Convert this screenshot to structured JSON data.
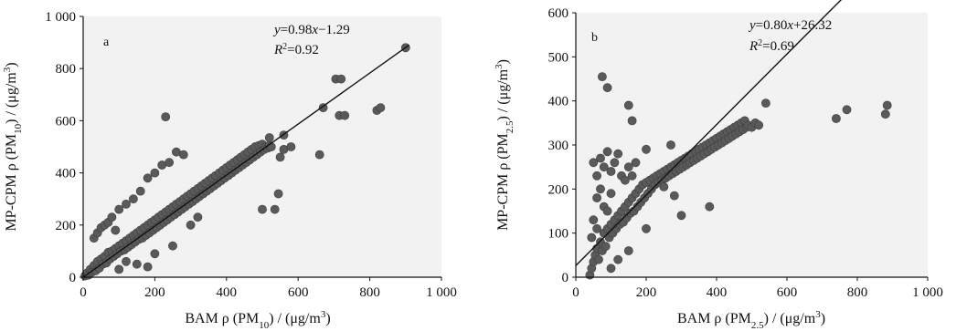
{
  "chart_data": [
    {
      "type": "scatter",
      "panel_label": "a",
      "xlabel_parts": {
        "pre": "BAM ρ (PM",
        "sub": "10",
        "post": ") / (μg/m",
        "sup": "3",
        "end": ")"
      },
      "ylabel_parts": {
        "pre": "MP-CPM ρ (PM",
        "sub": "10",
        "post": ") / (μg/m",
        "sup": "3",
        "end": ")"
      },
      "xlim": [
        0,
        1000
      ],
      "ylim": [
        0,
        1000
      ],
      "xticks": [
        0,
        200,
        400,
        600,
        800,
        1000
      ],
      "xtick_labels": [
        "0",
        "200",
        "400",
        "600",
        "800",
        "1 000"
      ],
      "yticks": [
        0,
        200,
        400,
        600,
        800,
        1000
      ],
      "ytick_labels": [
        "0",
        "200",
        "400",
        "600",
        "800",
        "1 000"
      ],
      "fit": {
        "slope": 0.98,
        "intercept": -1.29,
        "x_range": [
          0,
          910
        ]
      },
      "equation_parts": {
        "y": "y",
        "eq": "=0.98",
        "x": "x",
        "rest": "−1.29"
      },
      "r2_parts": {
        "r": "R",
        "sup": "2",
        "val": "=0.92"
      },
      "grid": false,
      "points": [
        [
          5,
          5
        ],
        [
          10,
          15
        ],
        [
          15,
          8
        ],
        [
          20,
          30
        ],
        [
          25,
          20
        ],
        [
          30,
          45
        ],
        [
          35,
          25
        ],
        [
          40,
          60
        ],
        [
          45,
          35
        ],
        [
          50,
          70
        ],
        [
          55,
          50
        ],
        [
          60,
          80
        ],
        [
          65,
          55
        ],
        [
          70,
          95
        ],
        [
          75,
          70
        ],
        [
          80,
          100
        ],
        [
          85,
          80
        ],
        [
          90,
          110
        ],
        [
          95,
          90
        ],
        [
          100,
          120
        ],
        [
          105,
          100
        ],
        [
          110,
          130
        ],
        [
          115,
          105
        ],
        [
          120,
          140
        ],
        [
          125,
          115
        ],
        [
          130,
          150
        ],
        [
          135,
          125
        ],
        [
          140,
          160
        ],
        [
          145,
          135
        ],
        [
          150,
          170
        ],
        [
          155,
          145
        ],
        [
          160,
          180
        ],
        [
          165,
          150
        ],
        [
          170,
          190
        ],
        [
          175,
          160
        ],
        [
          180,
          200
        ],
        [
          185,
          170
        ],
        [
          190,
          210
        ],
        [
          195,
          180
        ],
        [
          200,
          220
        ],
        [
          205,
          190
        ],
        [
          210,
          230
        ],
        [
          215,
          200
        ],
        [
          220,
          240
        ],
        [
          225,
          210
        ],
        [
          230,
          250
        ],
        [
          235,
          220
        ],
        [
          240,
          260
        ],
        [
          245,
          230
        ],
        [
          250,
          270
        ],
        [
          255,
          240
        ],
        [
          260,
          280
        ],
        [
          265,
          250
        ],
        [
          270,
          290
        ],
        [
          275,
          260
        ],
        [
          280,
          300
        ],
        [
          285,
          270
        ],
        [
          290,
          310
        ],
        [
          295,
          280
        ],
        [
          300,
          320
        ],
        [
          305,
          290
        ],
        [
          310,
          330
        ],
        [
          315,
          300
        ],
        [
          320,
          340
        ],
        [
          325,
          310
        ],
        [
          330,
          350
        ],
        [
          335,
          320
        ],
        [
          340,
          360
        ],
        [
          345,
          330
        ],
        [
          350,
          370
        ],
        [
          355,
          340
        ],
        [
          360,
          380
        ],
        [
          365,
          350
        ],
        [
          370,
          390
        ],
        [
          375,
          360
        ],
        [
          380,
          400
        ],
        [
          385,
          370
        ],
        [
          390,
          410
        ],
        [
          395,
          380
        ],
        [
          400,
          420
        ],
        [
          405,
          390
        ],
        [
          410,
          430
        ],
        [
          415,
          400
        ],
        [
          420,
          440
        ],
        [
          425,
          410
        ],
        [
          430,
          450
        ],
        [
          435,
          420
        ],
        [
          440,
          460
        ],
        [
          445,
          430
        ],
        [
          450,
          470
        ],
        [
          455,
          440
        ],
        [
          460,
          480
        ],
        [
          465,
          450
        ],
        [
          470,
          490
        ],
        [
          475,
          460
        ],
        [
          480,
          500
        ],
        [
          485,
          470
        ],
        [
          490,
          505
        ],
        [
          495,
          480
        ],
        [
          500,
          510
        ],
        [
          505,
          490
        ],
        [
          510,
          500
        ],
        [
          515,
          495
        ],
        [
          520,
          505
        ],
        [
          525,
          500
        ],
        [
          30,
          150
        ],
        [
          40,
          170
        ],
        [
          50,
          190
        ],
        [
          60,
          200
        ],
        [
          70,
          210
        ],
        [
          80,
          230
        ],
        [
          90,
          180
        ],
        [
          100,
          260
        ],
        [
          120,
          280
        ],
        [
          140,
          300
        ],
        [
          160,
          330
        ],
        [
          180,
          380
        ],
        [
          200,
          400
        ],
        [
          220,
          430
        ],
        [
          240,
          440
        ],
        [
          260,
          480
        ],
        [
          280,
          470
        ],
        [
          250,
          120
        ],
        [
          200,
          90
        ],
        [
          150,
          50
        ],
        [
          180,
          40
        ],
        [
          300,
          200
        ],
        [
          320,
          230
        ],
        [
          120,
          60
        ],
        [
          100,
          30
        ],
        [
          230,
          615
        ],
        [
          520,
          535
        ],
        [
          550,
          460
        ],
        [
          545,
          320
        ],
        [
          535,
          260
        ],
        [
          500,
          260
        ],
        [
          560,
          490
        ],
        [
          560,
          545
        ],
        [
          580,
          500
        ],
        [
          660,
          470
        ],
        [
          670,
          650
        ],
        [
          705,
          760
        ],
        [
          720,
          760
        ],
        [
          715,
          620
        ],
        [
          730,
          620
        ],
        [
          820,
          640
        ],
        [
          830,
          650
        ],
        [
          900,
          880
        ]
      ]
    },
    {
      "type": "scatter",
      "panel_label": "b",
      "xlabel_parts": {
        "pre": "BAM ρ (PM",
        "sub": "2.5",
        "post": ") / (μg/m",
        "sup": "3",
        "end": ")"
      },
      "ylabel_parts": {
        "pre": "MP-CPM ρ (PM",
        "sub": "2.5",
        "post": ") / (μg/m",
        "sup": "3",
        "end": ")"
      },
      "xlim": [
        0,
        1000
      ],
      "ylim": [
        0,
        600
      ],
      "xticks": [
        0,
        200,
        400,
        600,
        800,
        1000
      ],
      "xtick_labels": [
        "0",
        "200",
        "400",
        "600",
        "800",
        "1 000"
      ],
      "yticks": [
        0,
        100,
        200,
        300,
        400,
        500,
        600
      ],
      "ytick_labels": [
        "0",
        "100",
        "200",
        "300",
        "400",
        "500",
        "600"
      ],
      "fit": {
        "slope": 0.8,
        "intercept": 26.32,
        "x_range": [
          0,
          890
        ]
      },
      "equation_parts": {
        "y": "y",
        "eq": "=0.80",
        "x": "x",
        "rest": "+26.32"
      },
      "r2_parts": {
        "r": "R",
        "sup": "2",
        "val": "=0.69"
      },
      "grid": false,
      "points": [
        [
          40,
          5
        ],
        [
          45,
          20
        ],
        [
          50,
          35
        ],
        [
          55,
          50
        ],
        [
          60,
          65
        ],
        [
          65,
          40
        ],
        [
          70,
          80
        ],
        [
          75,
          60
        ],
        [
          80,
          100
        ],
        [
          85,
          70
        ],
        [
          90,
          110
        ],
        [
          95,
          90
        ],
        [
          100,
          120
        ],
        [
          105,
          100
        ],
        [
          110,
          130
        ],
        [
          115,
          110
        ],
        [
          120,
          140
        ],
        [
          125,
          120
        ],
        [
          130,
          150
        ],
        [
          135,
          125
        ],
        [
          140,
          160
        ],
        [
          145,
          135
        ],
        [
          150,
          170
        ],
        [
          155,
          145
        ],
        [
          160,
          180
        ],
        [
          165,
          150
        ],
        [
          170,
          190
        ],
        [
          175,
          160
        ],
        [
          180,
          200
        ],
        [
          185,
          170
        ],
        [
          190,
          210
        ],
        [
          195,
          180
        ],
        [
          200,
          215
        ],
        [
          205,
          190
        ],
        [
          210,
          220
        ],
        [
          215,
          200
        ],
        [
          220,
          225
        ],
        [
          225,
          210
        ],
        [
          230,
          230
        ],
        [
          235,
          215
        ],
        [
          240,
          235
        ],
        [
          245,
          220
        ],
        [
          250,
          240
        ],
        [
          255,
          225
        ],
        [
          260,
          245
        ],
        [
          265,
          230
        ],
        [
          270,
          250
        ],
        [
          275,
          235
        ],
        [
          280,
          255
        ],
        [
          285,
          240
        ],
        [
          290,
          260
        ],
        [
          295,
          245
        ],
        [
          300,
          265
        ],
        [
          305,
          250
        ],
        [
          310,
          270
        ],
        [
          315,
          255
        ],
        [
          320,
          275
        ],
        [
          325,
          260
        ],
        [
          330,
          280
        ],
        [
          335,
          265
        ],
        [
          340,
          285
        ],
        [
          345,
          270
        ],
        [
          350,
          290
        ],
        [
          355,
          275
        ],
        [
          360,
          295
        ],
        [
          365,
          280
        ],
        [
          370,
          300
        ],
        [
          375,
          285
        ],
        [
          380,
          305
        ],
        [
          385,
          290
        ],
        [
          390,
          310
        ],
        [
          395,
          295
        ],
        [
          400,
          315
        ],
        [
          405,
          300
        ],
        [
          410,
          320
        ],
        [
          415,
          305
        ],
        [
          420,
          325
        ],
        [
          425,
          310
        ],
        [
          430,
          330
        ],
        [
          435,
          315
        ],
        [
          440,
          335
        ],
        [
          445,
          320
        ],
        [
          450,
          340
        ],
        [
          455,
          325
        ],
        [
          460,
          345
        ],
        [
          465,
          330
        ],
        [
          470,
          350
        ],
        [
          475,
          335
        ],
        [
          480,
          355
        ],
        [
          485,
          340
        ],
        [
          490,
          345
        ],
        [
          500,
          340
        ],
        [
          510,
          350
        ],
        [
          520,
          345
        ],
        [
          540,
          395
        ],
        [
          50,
          260
        ],
        [
          60,
          230
        ],
        [
          70,
          270
        ],
        [
          80,
          250
        ],
        [
          90,
          285
        ],
        [
          100,
          240
        ],
        [
          110,
          260
        ],
        [
          120,
          280
        ],
        [
          130,
          230
        ],
        [
          60,
          180
        ],
        [
          70,
          200
        ],
        [
          80,
          160
        ],
        [
          90,
          150
        ],
        [
          100,
          190
        ],
        [
          140,
          220
        ],
        [
          150,
          250
        ],
        [
          160,
          230
        ],
        [
          170,
          260
        ],
        [
          75,
          455
        ],
        [
          90,
          430
        ],
        [
          150,
          390
        ],
        [
          160,
          355
        ],
        [
          200,
          290
        ],
        [
          270,
          300
        ],
        [
          250,
          205
        ],
        [
          300,
          140
        ],
        [
          380,
          160
        ],
        [
          280,
          185
        ],
        [
          200,
          110
        ],
        [
          150,
          60
        ],
        [
          120,
          40
        ],
        [
          100,
          20
        ],
        [
          60,
          110
        ],
        [
          50,
          130
        ],
        [
          45,
          90
        ],
        [
          740,
          360
        ],
        [
          770,
          380
        ],
        [
          880,
          370
        ],
        [
          885,
          390
        ]
      ]
    }
  ]
}
